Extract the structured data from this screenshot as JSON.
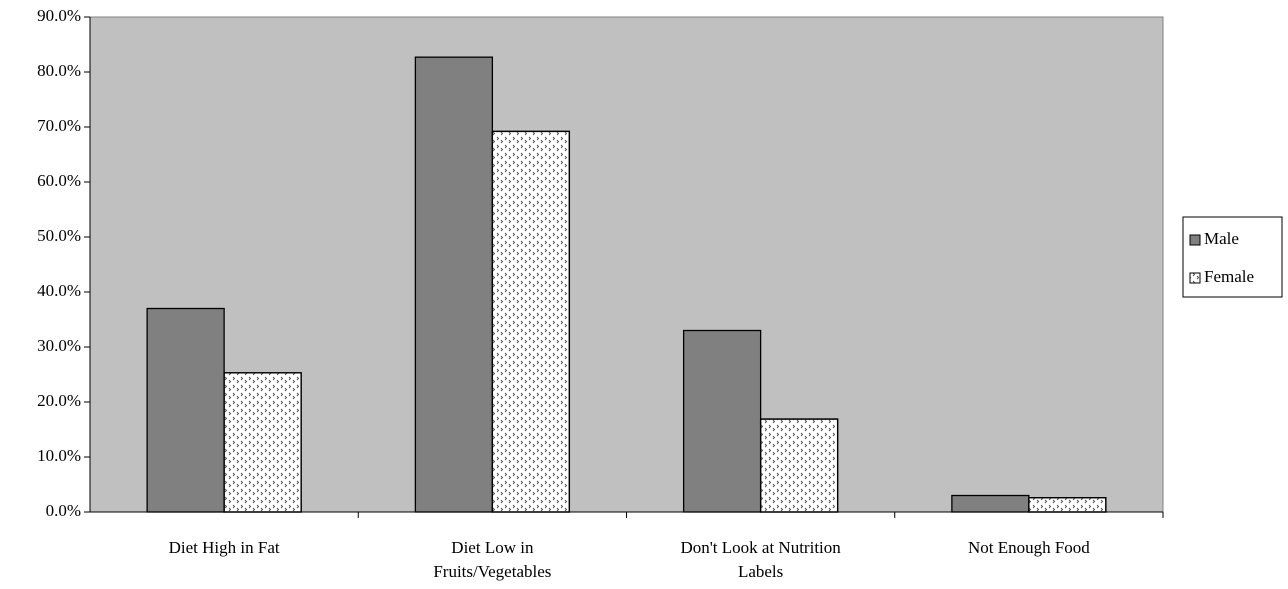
{
  "chart_data": {
    "type": "bar",
    "categories": [
      "Diet High in Fat",
      "Diet Low in Fruits/Vegetables",
      "Don't Look at Nutrition Labels",
      "Not Enough Food"
    ],
    "series": [
      {
        "name": "Male",
        "color": "#808080",
        "values": [
          37.0,
          82.7,
          33.0,
          3.0
        ]
      },
      {
        "name": "Female",
        "color": "#ffffff",
        "pattern": "dots",
        "values": [
          25.3,
          69.2,
          16.9,
          2.6
        ]
      }
    ],
    "ylim": [
      0,
      90
    ],
    "yticks": [
      {
        "value": 0,
        "label": "0.0%"
      },
      {
        "value": 10,
        "label": "10.0%"
      },
      {
        "value": 20,
        "label": "20.0%"
      },
      {
        "value": 30,
        "label": "30.0%"
      },
      {
        "value": 40,
        "label": "40.0%"
      },
      {
        "value": 50,
        "label": "50.0%"
      },
      {
        "value": 60,
        "label": "60.0%"
      },
      {
        "value": 70,
        "label": "70.0%"
      },
      {
        "value": 80,
        "label": "80.0%"
      },
      {
        "value": 90,
        "label": "90.0%"
      }
    ],
    "legend": "right",
    "plot_background": "#c0c0c0"
  }
}
